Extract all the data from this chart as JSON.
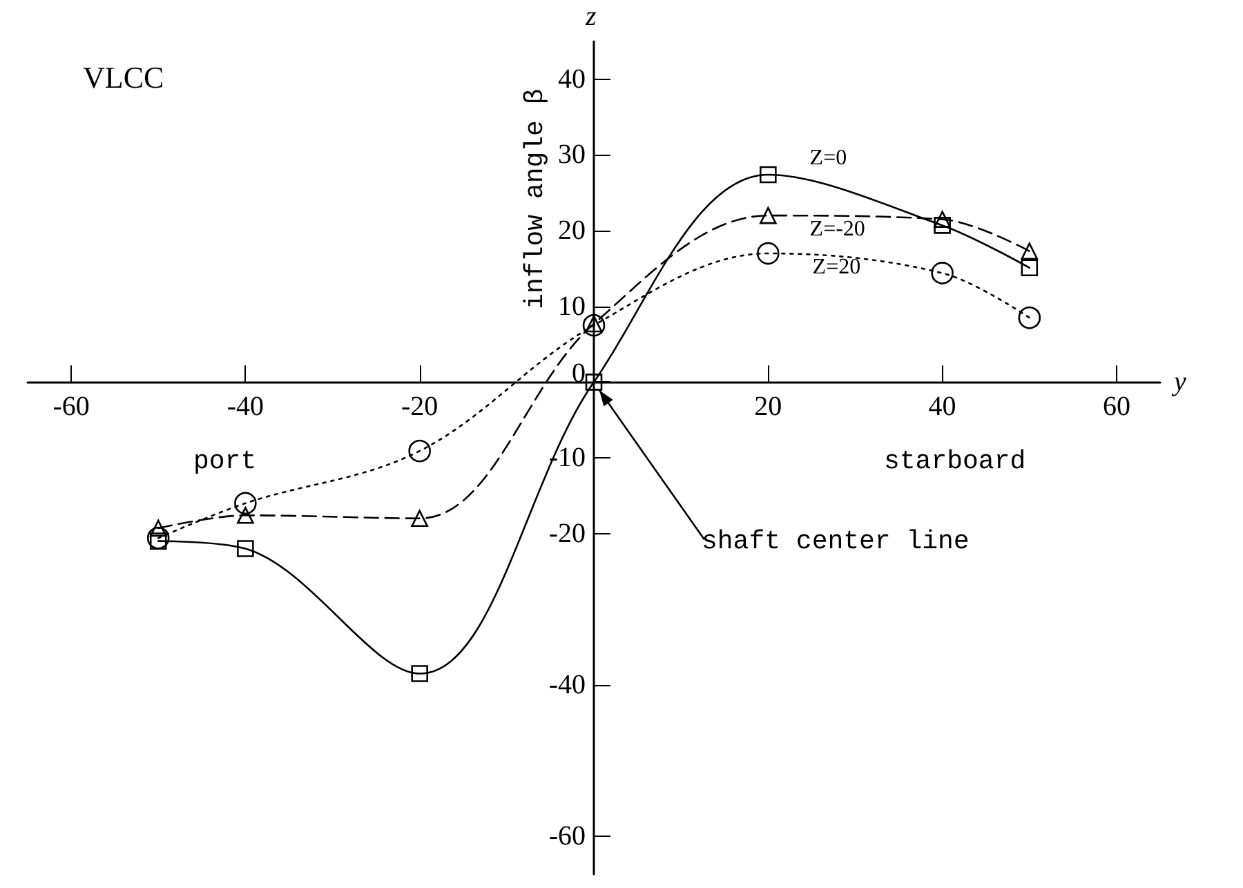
{
  "chart_data": {
    "type": "line",
    "xlabel": "y",
    "ylabel": "inflow angle β",
    "x": [
      -50,
      -40,
      -20,
      0,
      20,
      40,
      50
    ],
    "series": [
      {
        "name": "Z=0",
        "color": "#000000",
        "marker": "square",
        "line_style": "solid",
        "values": [
          -21,
          -22,
          -38.5,
          0,
          27.4,
          20.7,
          15.1
        ]
      },
      {
        "name": "Z=-20",
        "color": "#000000",
        "marker": "triangle",
        "line_style": "dashed",
        "values": [
          -19.3,
          -17.6,
          -18,
          7.7,
          22,
          21.5,
          17.3
        ]
      },
      {
        "name": "Z=20",
        "color": "#000000",
        "marker": "circle",
        "line_style": "dotted",
        "values": [
          -20.6,
          -16,
          -9.1,
          7.5,
          17,
          14.4,
          8.5
        ]
      }
    ],
    "xlim": [
      -65,
      65
    ],
    "xticks": [
      -60,
      -40,
      -20,
      20,
      40,
      60
    ],
    "ylim": [
      -65,
      45
    ],
    "yticks": [
      -60,
      -40,
      -20,
      -10,
      0,
      10,
      20,
      30,
      40
    ],
    "grid": false,
    "legend": false,
    "annotations": [
      "z",
      "VLCC",
      "port",
      "starboard",
      {
        "text": "shaft center line",
        "x": 0,
        "y": 0
      }
    ]
  }
}
